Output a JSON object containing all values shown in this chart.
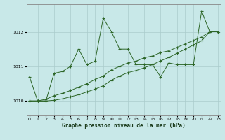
{
  "xlabel": "Graphe pression niveau de la mer (hPa)",
  "bg_color": "#c8e8e8",
  "grid_color": "#aacccc",
  "line_color": "#2d6628",
  "ylim": [
    1009.6,
    1012.8
  ],
  "xlim": [
    -0.3,
    23.3
  ],
  "yticks": [
    1010,
    1011,
    1012
  ],
  "xticks": [
    0,
    1,
    2,
    3,
    4,
    5,
    6,
    7,
    8,
    9,
    10,
    11,
    12,
    13,
    14,
    15,
    16,
    17,
    18,
    19,
    20,
    21,
    22,
    23
  ],
  "s1_x": [
    0,
    1,
    2,
    3,
    4,
    5,
    6,
    7,
    8,
    9,
    10,
    11,
    12,
    13,
    14,
    15,
    16,
    17,
    18,
    19,
    20,
    21,
    22,
    23
  ],
  "s1_y": [
    1010.7,
    1010.0,
    1010.0,
    1010.8,
    1010.85,
    1011.0,
    1011.5,
    1011.05,
    1011.15,
    1012.4,
    1012.0,
    1011.5,
    1011.5,
    1011.05,
    1011.05,
    1011.05,
    1010.7,
    1011.1,
    1011.05,
    1011.05,
    1011.05,
    1012.6,
    1012.0,
    1012.0
  ],
  "s2_x": [
    0,
    1,
    2,
    3,
    4,
    5,
    6,
    7,
    8,
    9,
    10,
    11,
    12,
    13,
    14,
    15,
    16,
    17,
    18,
    19,
    20,
    21,
    22,
    23
  ],
  "s2_y": [
    1010.0,
    1010.0,
    1010.05,
    1010.15,
    1010.22,
    1010.3,
    1010.4,
    1010.5,
    1010.62,
    1010.72,
    1010.9,
    1011.0,
    1011.1,
    1011.15,
    1011.25,
    1011.3,
    1011.4,
    1011.45,
    1011.55,
    1011.65,
    1011.75,
    1011.85,
    1012.0,
    1012.0
  ],
  "s3_x": [
    0,
    1,
    2,
    3,
    4,
    5,
    6,
    7,
    8,
    9,
    10,
    11,
    12,
    13,
    14,
    15,
    16,
    17,
    18,
    19,
    20,
    21,
    22,
    23
  ],
  "s3_y": [
    1010.0,
    1010.0,
    1010.0,
    1010.02,
    1010.06,
    1010.12,
    1010.18,
    1010.26,
    1010.34,
    1010.44,
    1010.6,
    1010.72,
    1010.82,
    1010.88,
    1010.96,
    1011.05,
    1011.16,
    1011.26,
    1011.38,
    1011.5,
    1011.62,
    1011.74,
    1012.0,
    1012.0
  ]
}
